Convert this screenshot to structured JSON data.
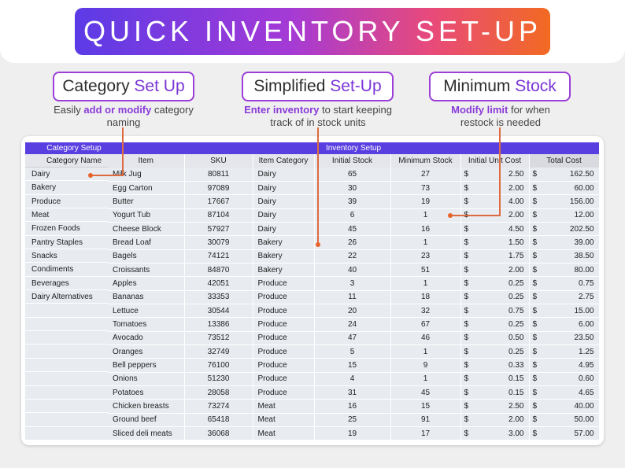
{
  "banner": {
    "title": "QUICK INVENTORY SET-UP"
  },
  "callouts": [
    {
      "title_a": "Category",
      "title_b": "Set Up",
      "desc_pre": "Easily ",
      "desc_bold": "add or modify",
      "desc_post": " category naming"
    },
    {
      "title_a": "Simplified",
      "title_b": "Set-Up",
      "desc_pre": "",
      "desc_bold": "Enter inventory",
      "desc_post": " to start keeping track of in stock units"
    },
    {
      "title_a": "Minimum",
      "title_b": "Stock",
      "desc_pre": "",
      "desc_bold": "Modify limit",
      "desc_post": " for when restock is needed"
    }
  ],
  "category_setup": {
    "header": "Category Setup",
    "column": "Category Name",
    "items": [
      "Dairy",
      "Bakery",
      "Produce",
      "Meat",
      "Frozen Foods",
      "Pantry Staples",
      "Snacks",
      "Condiments",
      "Beverages",
      "Dairy Alternatives",
      "",
      "",
      "",
      "",
      "",
      "",
      "",
      "",
      "",
      ""
    ]
  },
  "inventory_setup": {
    "header": "Inventory Setup",
    "currency": "$",
    "columns": [
      "Item",
      "SKU",
      "Item Category",
      "Initial Stock",
      "Minimum Stock",
      "Initial Unit Cost",
      "Total Cost"
    ],
    "rows": [
      [
        "Milk Jug",
        "80811",
        "Dairy",
        "65",
        "27",
        "2.50",
        "162.50"
      ],
      [
        "Egg Carton",
        "97089",
        "Dairy",
        "30",
        "73",
        "2.00",
        "60.00"
      ],
      [
        "Butter",
        "17667",
        "Dairy",
        "39",
        "19",
        "4.00",
        "156.00"
      ],
      [
        "Yogurt Tub",
        "87104",
        "Dairy",
        "6",
        "1",
        "2.00",
        "12.00"
      ],
      [
        "Cheese Block",
        "57927",
        "Dairy",
        "45",
        "16",
        "4.50",
        "202.50"
      ],
      [
        "Bread Loaf",
        "30079",
        "Bakery",
        "26",
        "1",
        "1.50",
        "39.00"
      ],
      [
        "Bagels",
        "74121",
        "Bakery",
        "22",
        "23",
        "1.75",
        "38.50"
      ],
      [
        "Croissants",
        "84870",
        "Bakery",
        "40",
        "51",
        "2.00",
        "80.00"
      ],
      [
        "Apples",
        "42051",
        "Produce",
        "3",
        "1",
        "0.25",
        "0.75"
      ],
      [
        "Bananas",
        "33353",
        "Produce",
        "11",
        "18",
        "0.25",
        "2.75"
      ],
      [
        "Lettuce",
        "30544",
        "Produce",
        "20",
        "32",
        "0.75",
        "15.00"
      ],
      [
        "Tomatoes",
        "13386",
        "Produce",
        "24",
        "67",
        "0.25",
        "6.00"
      ],
      [
        "Avocado",
        "73512",
        "Produce",
        "47",
        "46",
        "0.50",
        "23.50"
      ],
      [
        "Oranges",
        "32749",
        "Produce",
        "5",
        "1",
        "0.25",
        "1.25"
      ],
      [
        "Bell peppers",
        "76100",
        "Produce",
        "15",
        "9",
        "0.33",
        "4.95"
      ],
      [
        "Onions",
        "51230",
        "Produce",
        "4",
        "1",
        "0.15",
        "0.60"
      ],
      [
        "Potatoes",
        "28058",
        "Produce",
        "31",
        "45",
        "0.15",
        "4.65"
      ],
      [
        "Chicken breasts",
        "73274",
        "Meat",
        "16",
        "15",
        "2.50",
        "40.00"
      ],
      [
        "Ground beef",
        "65418",
        "Meat",
        "25",
        "91",
        "2.00",
        "50.00"
      ],
      [
        "Sliced deli meats",
        "36068",
        "Meat",
        "19",
        "17",
        "3.00",
        "57.00"
      ]
    ]
  }
}
